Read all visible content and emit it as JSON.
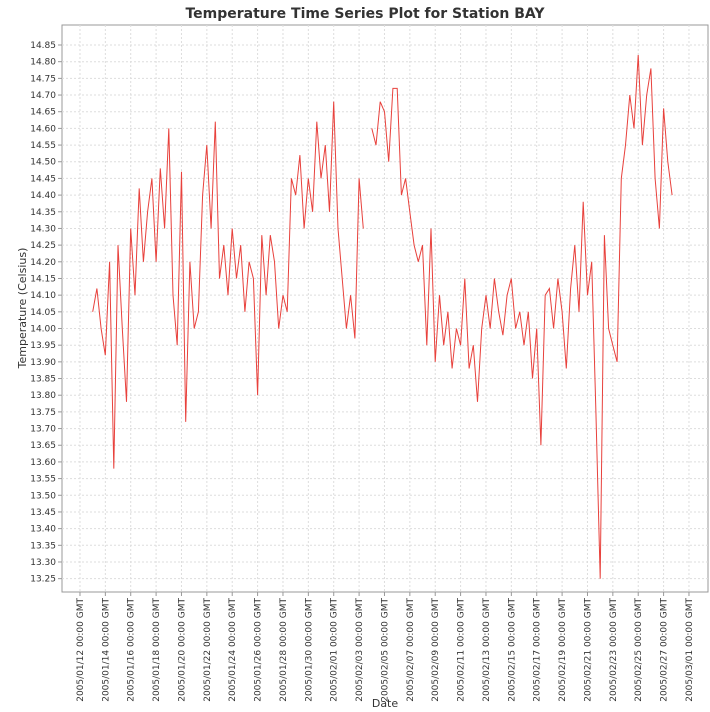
{
  "chart_data": {
    "type": "line",
    "title": "Temperature Time Series Plot for Station BAY",
    "xlabel": "Date",
    "ylabel": "Temperature (Celsius)",
    "grid": true,
    "xlim": [
      "2005-01-10T14:00",
      "2005-03-02T12:00"
    ],
    "ylim": [
      13.21,
      14.91
    ],
    "xticks": [
      {
        "value": "2005-01-12T00:00",
        "label": "2005/01/12 00:00 GMT"
      },
      {
        "value": "2005-01-14T00:00",
        "label": "2005/01/14 00:00 GMT"
      },
      {
        "value": "2005-01-16T00:00",
        "label": "2005/01/16 00:00 GMT"
      },
      {
        "value": "2005-01-18T00:00",
        "label": "2005/01/18 00:00 GMT"
      },
      {
        "value": "2005-01-20T00:00",
        "label": "2005/01/20 00:00 GMT"
      },
      {
        "value": "2005-01-22T00:00",
        "label": "2005/01/22 00:00 GMT"
      },
      {
        "value": "2005-01-24T00:00",
        "label": "2005/01/24 00:00 GMT"
      },
      {
        "value": "2005-01-26T00:00",
        "label": "2005/01/26 00:00 GMT"
      },
      {
        "value": "2005-01-28T00:00",
        "label": "2005/01/28 00:00 GMT"
      },
      {
        "value": "2005-01-30T00:00",
        "label": "2005/01/30 00:00 GMT"
      },
      {
        "value": "2005-02-01T00:00",
        "label": "2005/02/01 00:00 GMT"
      },
      {
        "value": "2005-02-03T00:00",
        "label": "2005/02/03 00:00 GMT"
      },
      {
        "value": "2005-02-05T00:00",
        "label": "2005/02/05 00:00 GMT"
      },
      {
        "value": "2005-02-07T00:00",
        "label": "2005/02/07 00:00 GMT"
      },
      {
        "value": "2005-02-09T00:00",
        "label": "2005/02/09 00:00 GMT"
      },
      {
        "value": "2005-02-11T00:00",
        "label": "2005/02/11 00:00 GMT"
      },
      {
        "value": "2005-02-13T00:00",
        "label": "2005/02/13 00:00 GMT"
      },
      {
        "value": "2005-02-15T00:00",
        "label": "2005/02/15 00:00 GMT"
      },
      {
        "value": "2005-02-17T00:00",
        "label": "2005/02/17 00:00 GMT"
      },
      {
        "value": "2005-02-19T00:00",
        "label": "2005/02/19 00:00 GMT"
      },
      {
        "value": "2005-02-21T00:00",
        "label": "2005/02/21 00:00 GMT"
      },
      {
        "value": "2005-02-23T00:00",
        "label": "2005/02/23 00:00 GMT"
      },
      {
        "value": "2005-02-25T00:00",
        "label": "2005/02/25 00:00 GMT"
      },
      {
        "value": "2005-02-27T00:00",
        "label": "2005/02/27 00:00 GMT"
      },
      {
        "value": "2005-03-01T00:00",
        "label": "2005/03/01 00:00 GMT"
      }
    ],
    "yticks": [
      14.85,
      {
        "value": 14.8,
        "label": "14.80"
      },
      14.75,
      {
        "value": 14.7,
        "label": "14.70"
      },
      14.65,
      {
        "value": 14.6,
        "label": "14.60"
      },
      14.55,
      {
        "value": 14.5,
        "label": "14.50"
      },
      14.45,
      {
        "value": 14.4,
        "label": "14.40"
      },
      14.35,
      {
        "value": 14.3,
        "label": "14.30"
      },
      14.25,
      {
        "value": 14.2,
        "label": "14.20"
      },
      14.15,
      {
        "value": 14.1,
        "label": "14.10"
      },
      14.05,
      {
        "value": 14.0,
        "label": "14.00"
      },
      13.95,
      {
        "value": 13.9,
        "label": "13.90"
      },
      13.85,
      {
        "value": 13.8,
        "label": "13.80"
      },
      13.75,
      {
        "value": 13.7,
        "label": "13.70"
      },
      13.65,
      {
        "value": 13.6,
        "label": "13.60"
      },
      13.55,
      {
        "value": 13.5,
        "label": "13.50"
      },
      13.45,
      {
        "value": 13.4,
        "label": "13.40"
      },
      13.35,
      {
        "value": 13.3,
        "label": "13.30"
      },
      13.25
    ],
    "x": [
      "2005-01-13T00:00",
      "2005-01-13T08:00",
      "2005-01-13T16:00",
      "2005-01-14T00:00",
      "2005-01-14T08:00",
      "2005-01-14T16:00",
      "2005-01-15T00:00",
      "2005-01-15T08:00",
      "2005-01-15T16:00",
      "2005-01-16T00:00",
      "2005-01-16T08:00",
      "2005-01-16T16:00",
      "2005-01-17T00:00",
      "2005-01-17T08:00",
      "2005-01-17T16:00",
      "2005-01-18T00:00",
      "2005-01-18T08:00",
      "2005-01-18T16:00",
      "2005-01-19T00:00",
      "2005-01-19T08:00",
      "2005-01-19T16:00",
      "2005-01-20T00:00",
      "2005-01-20T08:00",
      "2005-01-20T16:00",
      "2005-01-21T00:00",
      "2005-01-21T08:00",
      "2005-01-21T16:00",
      "2005-01-22T00:00",
      "2005-01-22T08:00",
      "2005-01-22T16:00",
      "2005-01-23T00:00",
      "2005-01-23T08:00",
      "2005-01-23T16:00",
      "2005-01-24T00:00",
      "2005-01-24T08:00",
      "2005-01-24T16:00",
      "2005-01-25T00:00",
      "2005-01-25T08:00",
      "2005-01-25T16:00",
      "2005-01-26T00:00",
      "2005-01-26T08:00",
      "2005-01-26T16:00",
      "2005-01-27T00:00",
      "2005-01-27T08:00",
      "2005-01-27T16:00",
      "2005-01-28T00:00",
      "2005-01-28T08:00",
      "2005-01-28T16:00",
      "2005-01-29T00:00",
      "2005-01-29T08:00",
      "2005-01-29T16:00",
      "2005-01-30T00:00",
      "2005-01-30T08:00",
      "2005-01-30T16:00",
      "2005-01-31T00:00",
      "2005-01-31T08:00",
      "2005-01-31T16:00",
      "2005-02-01T00:00",
      "2005-02-01T08:00",
      "2005-02-01T16:00",
      "2005-02-02T00:00",
      "2005-02-02T08:00",
      "2005-02-02T16:00",
      "2005-02-03T00:00",
      "2005-02-03T08:00",
      "2005-02-03T16:00",
      "2005-02-04T00:00",
      "2005-02-04T08:00",
      "2005-02-04T16:00",
      "2005-02-05T00:00",
      "2005-02-05T08:00",
      "2005-02-05T16:00",
      "2005-02-06T00:00",
      "2005-02-06T08:00",
      "2005-02-06T16:00",
      "2005-02-07T00:00",
      "2005-02-07T08:00",
      "2005-02-07T16:00",
      "2005-02-08T00:00",
      "2005-02-08T08:00",
      "2005-02-08T16:00",
      "2005-02-09T00:00",
      "2005-02-09T08:00",
      "2005-02-09T16:00",
      "2005-02-10T00:00",
      "2005-02-10T08:00",
      "2005-02-10T16:00",
      "2005-02-11T00:00",
      "2005-02-11T08:00",
      "2005-02-11T16:00",
      "2005-02-12T00:00",
      "2005-02-12T08:00",
      "2005-02-12T16:00",
      "2005-02-13T00:00",
      "2005-02-13T08:00",
      "2005-02-13T16:00",
      "2005-02-14T00:00",
      "2005-02-14T08:00",
      "2005-02-14T16:00",
      "2005-02-15T00:00",
      "2005-02-15T08:00",
      "2005-02-15T16:00",
      "2005-02-16T00:00",
      "2005-02-16T08:00",
      "2005-02-16T16:00",
      "2005-02-17T00:00",
      "2005-02-17T08:00",
      "2005-02-17T16:00",
      "2005-02-18T00:00",
      "2005-02-18T08:00",
      "2005-02-18T16:00",
      "2005-02-19T00:00",
      "2005-02-19T08:00",
      "2005-02-19T16:00",
      "2005-02-20T00:00",
      "2005-02-20T08:00",
      "2005-02-20T16:00",
      "2005-02-21T00:00",
      "2005-02-21T08:00",
      "2005-02-21T16:00",
      "2005-02-22T00:00",
      "2005-02-22T08:00",
      "2005-02-22T16:00",
      "2005-02-23T00:00",
      "2005-02-23T08:00",
      "2005-02-23T16:00",
      "2005-02-24T00:00",
      "2005-02-24T08:00",
      "2005-02-24T16:00",
      "2005-02-25T00:00",
      "2005-02-25T08:00",
      "2005-02-25T16:00",
      "2005-02-26T00:00",
      "2005-02-26T08:00",
      "2005-02-26T16:00",
      "2005-02-27T00:00",
      "2005-02-27T08:00",
      "2005-02-27T16:00"
    ],
    "series": [
      {
        "color": "#e8413c",
        "values": [
          14.05,
          14.12,
          14.0,
          13.92,
          14.2,
          13.58,
          14.25,
          14.0,
          13.78,
          14.3,
          14.1,
          14.42,
          14.2,
          14.35,
          14.45,
          14.2,
          14.48,
          14.3,
          14.6,
          14.1,
          13.95,
          14.47,
          13.72,
          14.2,
          14.0,
          14.05,
          14.4,
          14.55,
          14.3,
          14.62,
          14.15,
          14.25,
          14.1,
          14.3,
          14.15,
          14.25,
          14.05,
          14.2,
          14.15,
          13.8,
          14.28,
          14.1,
          14.28,
          14.2,
          14.0,
          14.1,
          14.05,
          14.45,
          14.4,
          14.52,
          14.3,
          14.45,
          14.35,
          14.62,
          14.45,
          14.55,
          14.35,
          14.68,
          14.3,
          14.15,
          14.0,
          14.1,
          13.97,
          14.45,
          14.3,
          null,
          14.6,
          14.55,
          14.68,
          14.65,
          14.5,
          14.72,
          14.72,
          14.4,
          14.45,
          14.35,
          14.25,
          14.2,
          14.25,
          13.95,
          14.3,
          13.9,
          14.1,
          13.95,
          14.05,
          13.88,
          14.0,
          13.95,
          14.15,
          13.88,
          13.95,
          13.78,
          14.0,
          14.1,
          14.0,
          14.15,
          14.05,
          13.98,
          14.1,
          14.15,
          14.0,
          14.05,
          13.95,
          14.05,
          13.85,
          14.0,
          13.65,
          14.1,
          14.12,
          14.0,
          14.15,
          14.05,
          13.88,
          14.12,
          14.25,
          14.05,
          14.38,
          14.1,
          14.2,
          13.75,
          13.25,
          14.28,
          14.0,
          13.95,
          13.9,
          14.45,
          14.55,
          14.7,
          14.6,
          14.82,
          14.55,
          14.7,
          14.78,
          14.45,
          14.3,
          14.66,
          14.5,
          14.4
        ]
      }
    ]
  }
}
